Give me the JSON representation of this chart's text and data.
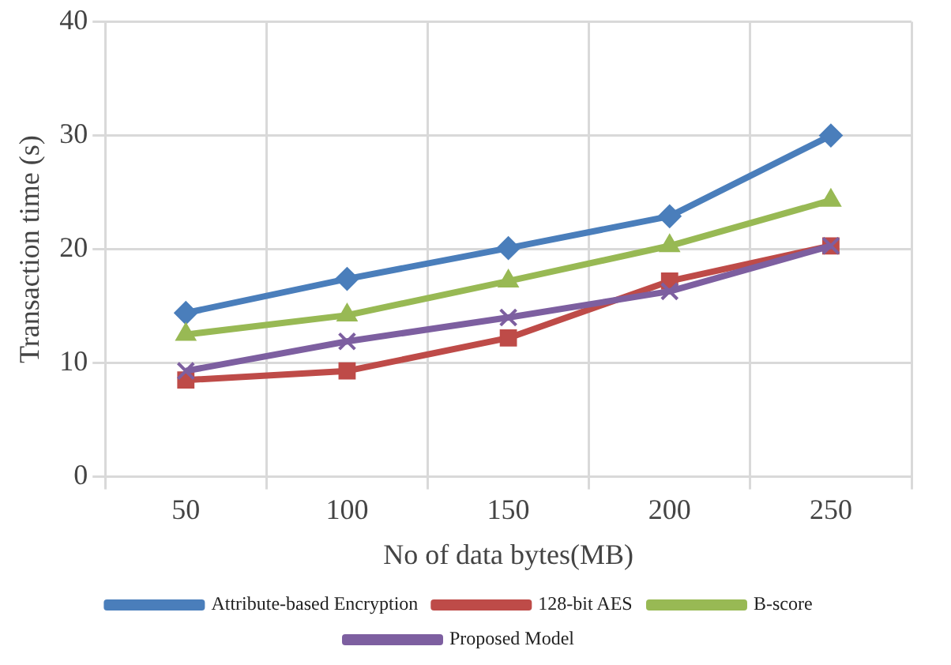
{
  "chart_data": {
    "type": "line",
    "xlabel": "No of data bytes(MB)",
    "ylabel": "Transaction time (s)",
    "categories": [
      "50",
      "100",
      "150",
      "200",
      "250"
    ],
    "series": [
      {
        "name": "Attribute-based Encryption",
        "color": "#4a7ebb",
        "marker": "diamond",
        "values": [
          14.4,
          17.4,
          20.1,
          22.9,
          30.0
        ]
      },
      {
        "name": "128-bit AES",
        "color": "#be4b48",
        "marker": "square",
        "values": [
          8.5,
          9.3,
          12.2,
          17.2,
          20.3
        ]
      },
      {
        "name": "B-score",
        "color": "#98b954",
        "marker": "triangle",
        "values": [
          12.5,
          14.2,
          17.2,
          20.3,
          24.3
        ]
      },
      {
        "name": "Proposed Model",
        "color": "#7d5fa0",
        "marker": "cross",
        "values": [
          9.3,
          11.9,
          14.0,
          16.3,
          20.3
        ]
      }
    ],
    "ylim": [
      0,
      40
    ],
    "yticks": [
      0,
      10,
      20,
      30,
      40
    ],
    "grid": true,
    "legend": "bottom"
  }
}
